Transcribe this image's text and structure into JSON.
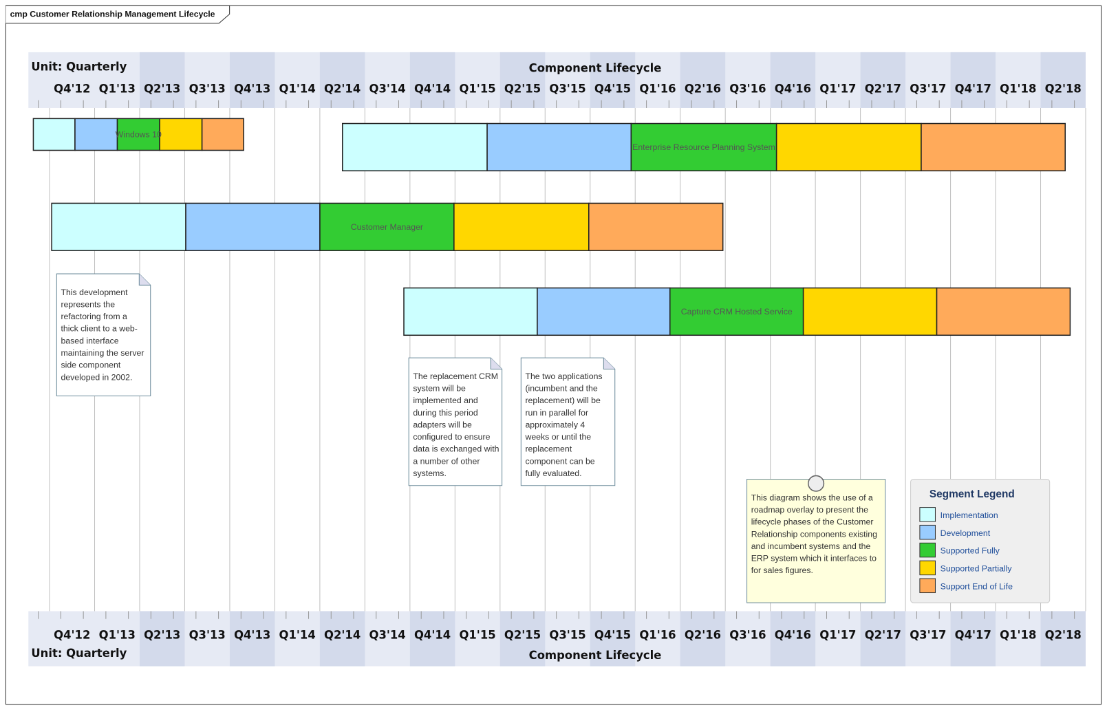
{
  "frame": {
    "title": "cmp Customer Relationship Management Lifecycle"
  },
  "timeline": {
    "unit": "Unit: Quarterly",
    "title": "Component Lifecycle",
    "quarters": [
      "Q4'12",
      "Q1'13",
      "Q2'13",
      "Q3'13",
      "Q4'13",
      "Q1'14",
      "Q2'14",
      "Q3'14",
      "Q4'14",
      "Q1'15",
      "Q2'15",
      "Q3'15",
      "Q4'15",
      "Q1'16",
      "Q2'16",
      "Q3'16",
      "Q4'16",
      "Q1'17",
      "Q2'17",
      "Q3'17",
      "Q4'17",
      "Q1'18",
      "Q2'18"
    ]
  },
  "components": [
    {
      "name": "Windows 10"
    },
    {
      "name": "Enterprise Resource Planning System"
    },
    {
      "name": "Customer Manager"
    },
    {
      "name": "Capture CRM Hosted Service"
    }
  ],
  "notes": [
    {
      "lines": [
        "This development",
        "represents the",
        "refactoring from a",
        "thick client to a web-",
        "based interface",
        "maintaining the server",
        "side component",
        "developed in 2002."
      ]
    },
    {
      "lines": [
        "The replacement CRM",
        "system will be",
        "implemented and",
        "during this period",
        "adapters will be",
        "configured to ensure",
        "data is exchanged with",
        "a number of other",
        "systems."
      ]
    },
    {
      "lines": [
        "The two applications",
        "(incumbent and the",
        "replacement) will be",
        "run in parallel for",
        "approximately 4",
        "weeks or until the",
        "replacement",
        "component can be",
        "fully evaluated."
      ]
    },
    {
      "lines": [
        "This diagram shows the use of a",
        "roadmap overlay to present the",
        "lifecycle phases of the Customer",
        "Relationship components existing",
        "and incumbent systems and the",
        "ERP system which it interfaces to",
        "for sales figures."
      ]
    }
  ],
  "legend": {
    "title": "Segment Legend",
    "items": [
      {
        "label": "Implementation",
        "color": "#ccffff"
      },
      {
        "label": "Development",
        "color": "#99ccff"
      },
      {
        "label": "Supported Fully",
        "color": "#33cc33"
      },
      {
        "label": "Supported Partially",
        "color": "#ffd700"
      },
      {
        "label": "Support End of Life",
        "color": "#ffaa5a"
      }
    ]
  }
}
